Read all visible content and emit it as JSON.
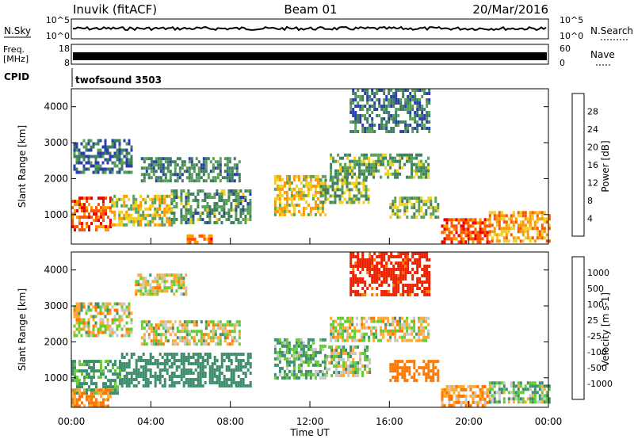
{
  "header": {
    "station": "Inuvik (fitACF)",
    "beam": "Beam 01",
    "date": "20/Mar/2016"
  },
  "status_panels": {
    "nsky_label": "N.Sky",
    "nsky_ticks": [
      "10^5",
      "10^0"
    ],
    "nsearch_label": "N.Search",
    "nsearch_ticks": [
      "10^5",
      "10^0"
    ],
    "freq_label_1": "Freq.",
    "freq_label_2": "[MHz]",
    "freq_ticks": [
      "18",
      "8"
    ],
    "nave_label": "Nave",
    "nave_ticks": [
      "60",
      "0"
    ],
    "cpid_label": "CPID",
    "cpid_value": "twofsound 3503"
  },
  "chart_data": [
    {
      "type": "heatmap",
      "name": "power",
      "ylabel": "Slant Range [km]",
      "ylim": [
        180,
        4500
      ],
      "yticks": [
        "4000",
        "3000",
        "2000",
        "1000"
      ],
      "xlim_hours": [
        0,
        24
      ],
      "colorbar_label": "Power [dB]",
      "colorbar_ticks": [
        "28",
        "24",
        "20",
        "16",
        "12",
        "8",
        "4"
      ],
      "colors": [
        "#0000e0",
        "#2b3fa8",
        "#3f7f5f",
        "#5aa05a",
        "#f0d020",
        "#ff9900",
        "#ff5500",
        "#ee0000"
      ],
      "regions": [
        {
          "t": [
            0.0,
            2.0
          ],
          "r": [
            600,
            1500
          ],
          "v": 26
        },
        {
          "t": [
            2.0,
            5.0
          ],
          "r": [
            700,
            1550
          ],
          "v": 18
        },
        {
          "t": [
            5.0,
            9.0
          ],
          "r": [
            800,
            1700
          ],
          "v": 12
        },
        {
          "t": [
            0.1,
            3.0
          ],
          "r": [
            2200,
            3100
          ],
          "v": 9
        },
        {
          "t": [
            3.5,
            8.5
          ],
          "r": [
            1900,
            2600
          ],
          "v": 11
        },
        {
          "t": [
            10.2,
            12.8
          ],
          "r": [
            1000,
            2100
          ],
          "v": 19
        },
        {
          "t": [
            12.5,
            15.0
          ],
          "r": [
            1300,
            2000
          ],
          "v": 14
        },
        {
          "t": [
            13.0,
            18.0
          ],
          "r": [
            2000,
            2700
          ],
          "v": 13
        },
        {
          "t": [
            16.0,
            18.5
          ],
          "r": [
            900,
            1500
          ],
          "v": 15
        },
        {
          "t": [
            18.6,
            21.0
          ],
          "r": [
            200,
            900
          ],
          "v": 27
        },
        {
          "t": [
            21.0,
            24.0
          ],
          "r": [
            300,
            1100
          ],
          "v": 22
        },
        {
          "t": [
            14.0,
            18.0
          ],
          "r": [
            3300,
            4500
          ],
          "v": 10
        },
        {
          "t": [
            5.8,
            7.0
          ],
          "r": [
            250,
            450
          ],
          "v": 24
        }
      ]
    },
    {
      "type": "heatmap",
      "name": "velocity",
      "ylabel": "Slant Range [km]",
      "ylim": [
        180,
        4500
      ],
      "yticks": [
        "4000",
        "3000",
        "2000",
        "1000"
      ],
      "xlim_hours": [
        0,
        24
      ],
      "colorbar_label": "Velocity [m s-1]",
      "colorbar_ticks": [
        "1000",
        "500",
        "100",
        "25",
        "-25",
        "-100",
        "-500",
        "-1000"
      ],
      "colors": [
        "#1030a0",
        "#2f6f9f",
        "#3f8f6f",
        "#66cc33",
        "#c8c8c8",
        "#ffaa33",
        "#ff7700",
        "#ee2200",
        "#dd0000"
      ],
      "regions": [
        {
          "t": [
            0.0,
            2.5
          ],
          "r": [
            600,
            1500
          ],
          "v": 150
        },
        {
          "t": [
            2.5,
            9.0
          ],
          "r": [
            800,
            1700
          ],
          "v": 300
        },
        {
          "t": [
            0.1,
            3.0
          ],
          "r": [
            2200,
            3100
          ],
          "v": 0
        },
        {
          "t": [
            3.5,
            8.5
          ],
          "r": [
            1900,
            2600
          ],
          "v": 0
        },
        {
          "t": [
            3.2,
            5.8
          ],
          "r": [
            3300,
            3900
          ],
          "v": 0
        },
        {
          "t": [
            10.2,
            12.8
          ],
          "r": [
            1000,
            2100
          ],
          "v": 120
        },
        {
          "t": [
            12.8,
            15.0
          ],
          "r": [
            1100,
            1900
          ],
          "v": 60
        },
        {
          "t": [
            13.0,
            18.0
          ],
          "r": [
            2000,
            2700
          ],
          "v": 0
        },
        {
          "t": [
            16.0,
            18.5
          ],
          "r": [
            900,
            1500
          ],
          "v": -300
        },
        {
          "t": [
            18.6,
            21.0
          ],
          "r": [
            200,
            800
          ],
          "v": -100
        },
        {
          "t": [
            21.0,
            24.0
          ],
          "r": [
            300,
            900
          ],
          "v": 80
        },
        {
          "t": [
            0.0,
            2.0
          ],
          "r": [
            200,
            700
          ],
          "v": -150
        },
        {
          "t": [
            14.0,
            18.0
          ],
          "r": [
            3300,
            4500
          ],
          "v": -600
        }
      ]
    }
  ],
  "x_axis": {
    "ticks": [
      "00:00",
      "04:00",
      "08:00",
      "12:00",
      "16:00",
      "20:00",
      "00:00"
    ],
    "label": "Time UT"
  }
}
